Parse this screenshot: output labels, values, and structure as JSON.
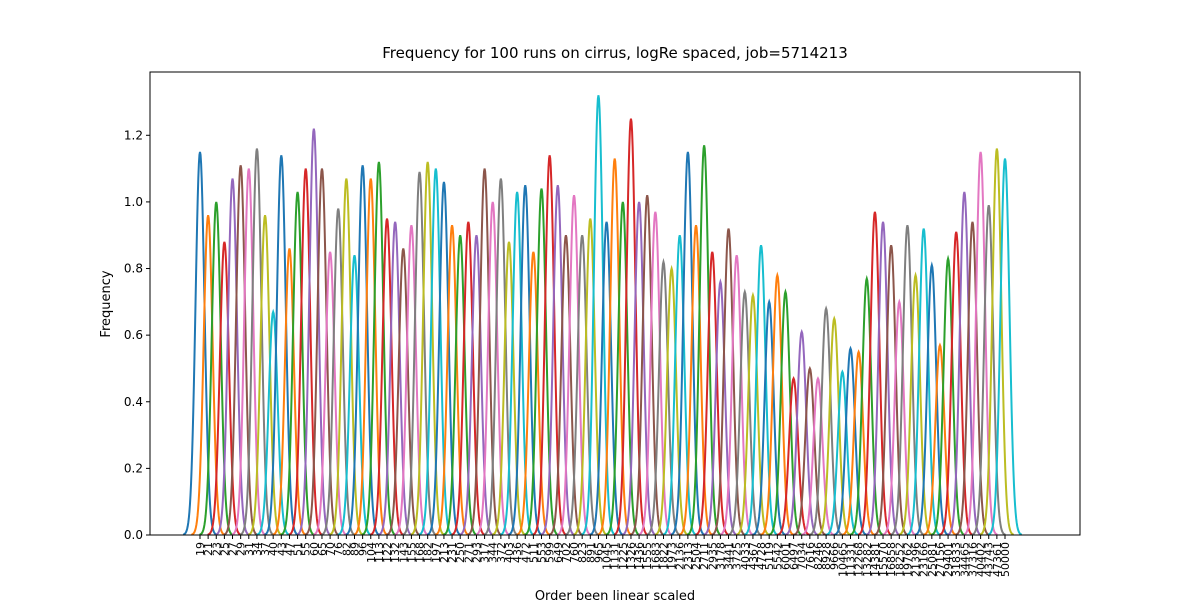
{
  "chart_data": {
    "type": "peaks",
    "title": "Frequency for 100 runs on cirrus, logRe spaced, job=5714213",
    "x_label": "Order been linear scaled",
    "y_label": "Frequency",
    "categories": [
      "19",
      "21",
      "23",
      "25",
      "27",
      "29",
      "31",
      "34",
      "37",
      "40",
      "43",
      "47",
      "51",
      "55",
      "60",
      "65",
      "70",
      "76",
      "82",
      "89",
      "96",
      "104",
      "113",
      "122",
      "132",
      "143",
      "155",
      "168",
      "182",
      "197",
      "213",
      "231",
      "250",
      "271",
      "293",
      "317",
      "344",
      "372",
      "403",
      "436",
      "472",
      "511",
      "553",
      "599",
      "649",
      "702",
      "760",
      "823",
      "891",
      "965",
      "1045",
      "1131",
      "1225",
      "1326",
      "1436",
      "1555",
      "1683",
      "1822",
      "1973",
      "2136",
      "2313",
      "2504",
      "2711",
      "2935",
      "3178",
      "3441",
      "3725",
      "4033",
      "4367",
      "4728",
      "5119",
      "5542",
      "6001",
      "6497",
      "7034",
      "7616",
      "8246",
      "8928",
      "9666",
      "10465",
      "11331",
      "12268",
      "13282",
      "14381",
      "15570",
      "16858",
      "18252",
      "19762",
      "21396",
      "23166",
      "25081",
      "27156",
      "29401",
      "31833",
      "34465",
      "37316",
      "40402",
      "43743",
      "47361",
      "50000"
    ],
    "values": [
      1.15,
      0.96,
      1.0,
      0.88,
      1.07,
      1.11,
      1.1,
      1.16,
      0.96,
      0.67,
      1.14,
      0.86,
      1.03,
      1.1,
      1.22,
      1.1,
      0.85,
      0.98,
      1.07,
      0.84,
      1.11,
      1.07,
      1.12,
      0.95,
      0.94,
      0.86,
      0.93,
      1.09,
      1.12,
      1.1,
      1.06,
      0.93,
      0.9,
      0.94,
      0.9,
      1.1,
      1.0,
      1.07,
      0.88,
      1.03,
      1.05,
      0.85,
      1.04,
      1.14,
      1.05,
      0.9,
      1.02,
      0.9,
      0.95,
      1.32,
      0.94,
      1.13,
      1.0,
      1.25,
      1.0,
      1.02,
      0.97,
      0.82,
      0.8,
      0.9,
      1.15,
      0.93,
      1.17,
      0.85,
      0.76,
      0.92,
      0.84,
      0.73,
      0.72,
      0.87,
      0.7,
      0.78,
      0.73,
      0.47,
      0.61,
      0.5,
      0.47,
      0.68,
      0.65,
      0.49,
      0.56,
      0.55,
      0.77,
      0.97,
      0.94,
      0.87,
      0.7,
      0.93,
      0.78,
      0.92,
      0.81,
      0.57,
      0.83,
      0.91,
      1.03,
      0.94,
      1.15,
      0.99,
      1.16,
      1.13
    ],
    "colors": [
      "#1f77b4",
      "#ff7f0e",
      "#2ca02c",
      "#d62728",
      "#9467bd",
      "#8c564b",
      "#e377c2",
      "#7f7f7f",
      "#bcbd22",
      "#17becf"
    ],
    "ylim": [
      0,
      1.39
    ],
    "yticks": [
      {
        "value": 0,
        "label": "0.0"
      },
      {
        "value": 0.2,
        "label": "0.2"
      },
      {
        "value": 0.4,
        "label": "0.4"
      },
      {
        "value": 0.6,
        "label": "0.6"
      },
      {
        "value": 0.8,
        "label": "0.8"
      },
      {
        "value": 1,
        "label": "1.0"
      },
      {
        "value": 1.2,
        "label": "1.2"
      }
    ]
  }
}
